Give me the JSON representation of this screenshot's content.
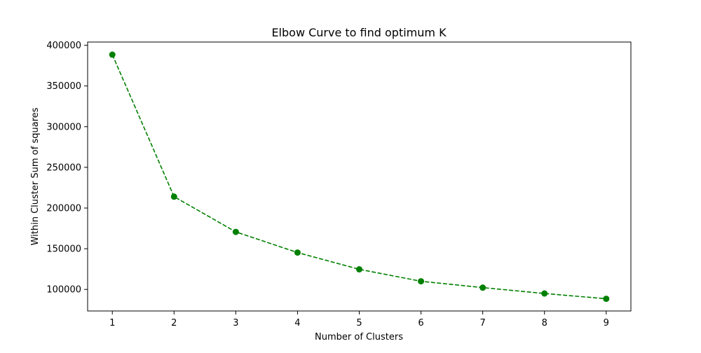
{
  "chart_data": {
    "type": "line",
    "title": "Elbow Curve to find optimum K",
    "xlabel": "Number of Clusters",
    "ylabel": "Within Cluster Sum of squares",
    "x": [
      1,
      2,
      3,
      4,
      5,
      6,
      7,
      8,
      9
    ],
    "series": [
      {
        "values": [
          388500,
          214000,
          170700,
          145300,
          124700,
          110000,
          102200,
          95000,
          88500
        ],
        "color": "#008000",
        "line_style": "dashed",
        "marker": "circle"
      }
    ],
    "xlim": [
      0.6,
      9.4
    ],
    "ylim": [
      73500,
      404000
    ],
    "xticks": [
      1,
      2,
      3,
      4,
      5,
      6,
      7,
      8,
      9
    ],
    "yticks": [
      100000,
      150000,
      200000,
      250000,
      300000,
      350000,
      400000
    ],
    "xtick_labels": [
      "1",
      "2",
      "3",
      "4",
      "5",
      "6",
      "7",
      "8",
      "9"
    ],
    "ytick_labels": [
      "100000",
      "150000",
      "200000",
      "250000",
      "300000",
      "350000",
      "400000"
    ],
    "grid": false,
    "legend": "none"
  }
}
